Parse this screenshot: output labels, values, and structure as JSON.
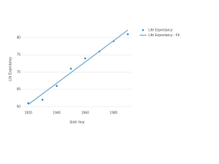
{
  "chart_data": {
    "type": "scatter",
    "xlabel": "Birth Year",
    "ylabel": "Life Expectancy",
    "series": [
      {
        "name": "Life Expectancy",
        "color": "#1f77b4",
        "mode": "markers",
        "x": [
          1920,
          1930,
          1940,
          1950,
          1960,
          1970,
          1980,
          1990
        ],
        "values": [
          61,
          62,
          66,
          71,
          74,
          76,
          79,
          81
        ]
      },
      {
        "name": "Life Expectancy - Fit",
        "color": "#6aa6cd",
        "mode": "lines",
        "x": [
          1920,
          1990
        ],
        "values": [
          60.6,
          82.2
        ]
      }
    ],
    "xlim": [
      1916,
      1993
    ],
    "ylim": [
      59.2,
      82.6
    ],
    "xticks": [
      1920,
      1940,
      1960,
      1980
    ],
    "yticks": [
      60,
      65,
      70,
      75,
      80
    ],
    "grid": true,
    "legend": "top-right"
  }
}
